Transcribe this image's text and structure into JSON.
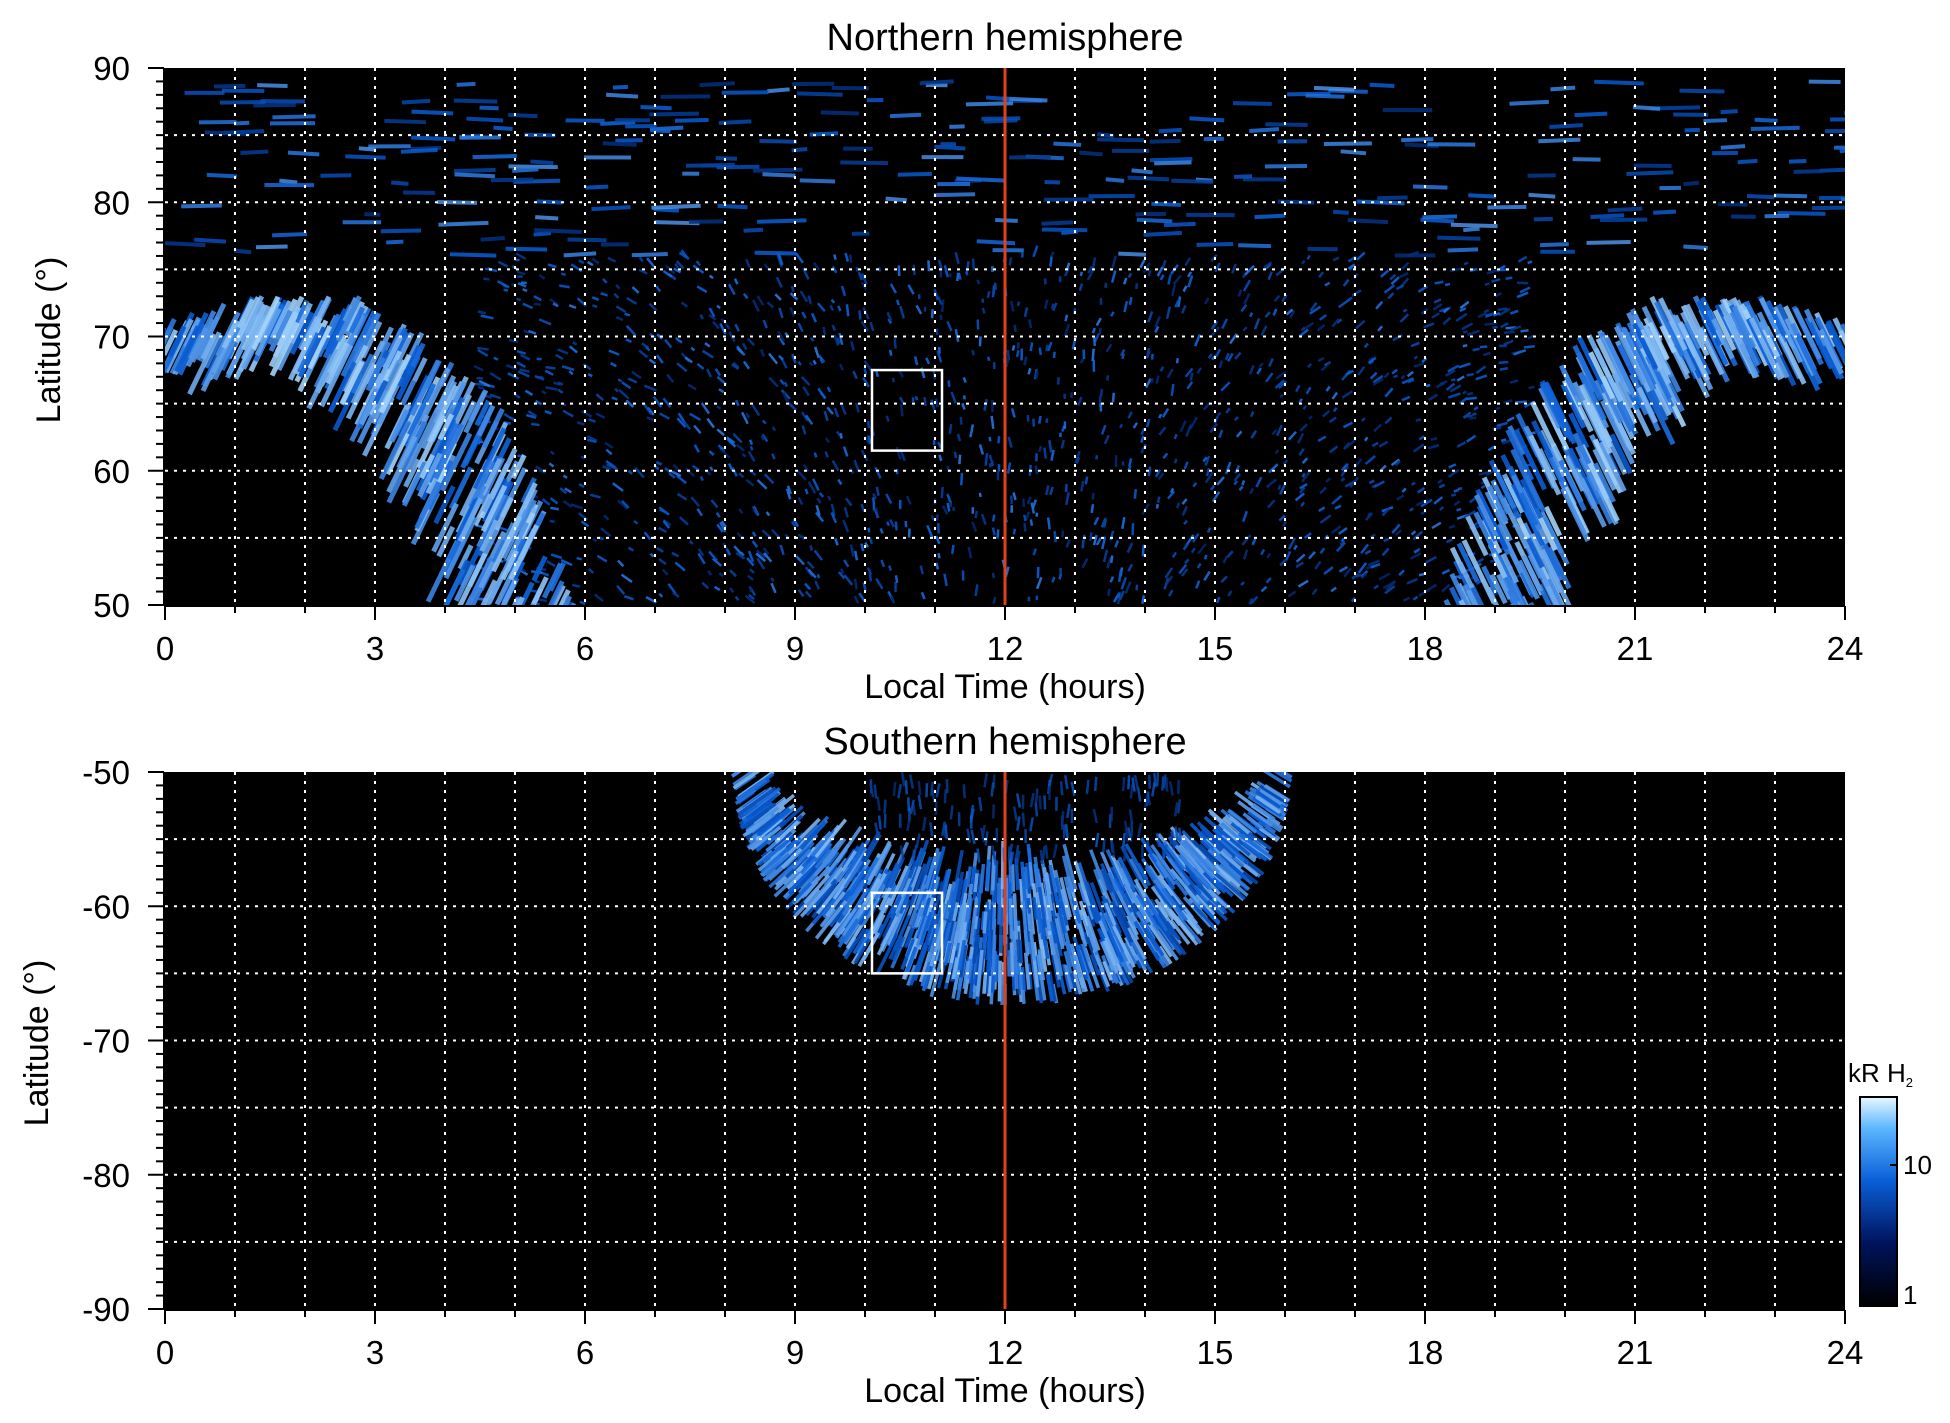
{
  "colors": {
    "background": "#000000",
    "emission_low": "#000c3a",
    "emission_mid": "#0a5fd8",
    "emission_high": "#b9e4ff",
    "local_noon_line": "#e0401a",
    "grid": "#ffffff",
    "region_box": "#ffffff"
  },
  "chart_data": [
    {
      "type": "heatmap",
      "title": "Northern hemisphere",
      "xlabel": "Local Time (hours)",
      "ylabel": "Latitude (°)",
      "xlim": [
        0,
        24
      ],
      "ylim": [
        50,
        90
      ],
      "x_ticks": [
        "0",
        "3",
        "6",
        "9",
        "12",
        "15",
        "18",
        "21",
        "24"
      ],
      "y_ticks": [
        "50",
        "60",
        "70",
        "80",
        "90"
      ],
      "grid": true,
      "grid_x_step_hours": 1,
      "grid_y_step_deg": 5,
      "vertical_marker_local_time": 12,
      "region_box": {
        "lt": [
          10.1,
          11.1
        ],
        "lat": [
          61.5,
          67.5
        ]
      },
      "main_oval_dawn_lat_lt": [
        [
          70,
          0
        ],
        [
          73,
          2
        ],
        [
          70,
          3
        ],
        [
          65,
          4
        ],
        [
          58,
          4.7
        ],
        [
          50,
          5.2
        ]
      ],
      "main_oval_dusk_lat_lt": [
        [
          50,
          18.8
        ],
        [
          58,
          19.4
        ],
        [
          65,
          20.2
        ],
        [
          70,
          21
        ],
        [
          73,
          22
        ],
        [
          70,
          24
        ]
      ],
      "intensity_unit": "kR H₂",
      "colorscale": "log",
      "colorbar_ticks": [
        "1",
        "10"
      ]
    },
    {
      "type": "heatmap",
      "title": "Southern hemisphere",
      "xlabel": "Local Time (hours)",
      "ylabel": "Latitude (°)",
      "xlim": [
        0,
        24
      ],
      "ylim": [
        -90,
        -50
      ],
      "x_ticks": [
        "0",
        "3",
        "6",
        "9",
        "12",
        "15",
        "18",
        "21",
        "24"
      ],
      "y_ticks": [
        "-50",
        "-60",
        "-70",
        "-80",
        "-90"
      ],
      "grid": true,
      "grid_x_step_hours": 1,
      "grid_y_step_deg": 5,
      "vertical_marker_local_time": 12,
      "region_box": {
        "lt": [
          10.1,
          11.1
        ],
        "lat": [
          -59,
          -65
        ]
      },
      "oval_lt_range": [
        8.1,
        16.1
      ],
      "oval_outer_lat_at_noon": -67.5,
      "oval_inner_lat_at_noon": -57.5,
      "intensity_unit": "kR H₂",
      "colorscale": "log",
      "colorbar_ticks": [
        "1",
        "10"
      ]
    }
  ],
  "colorbar": {
    "label": "kR H",
    "label_subscript": "2",
    "ticks": [
      "10",
      "1"
    ]
  }
}
